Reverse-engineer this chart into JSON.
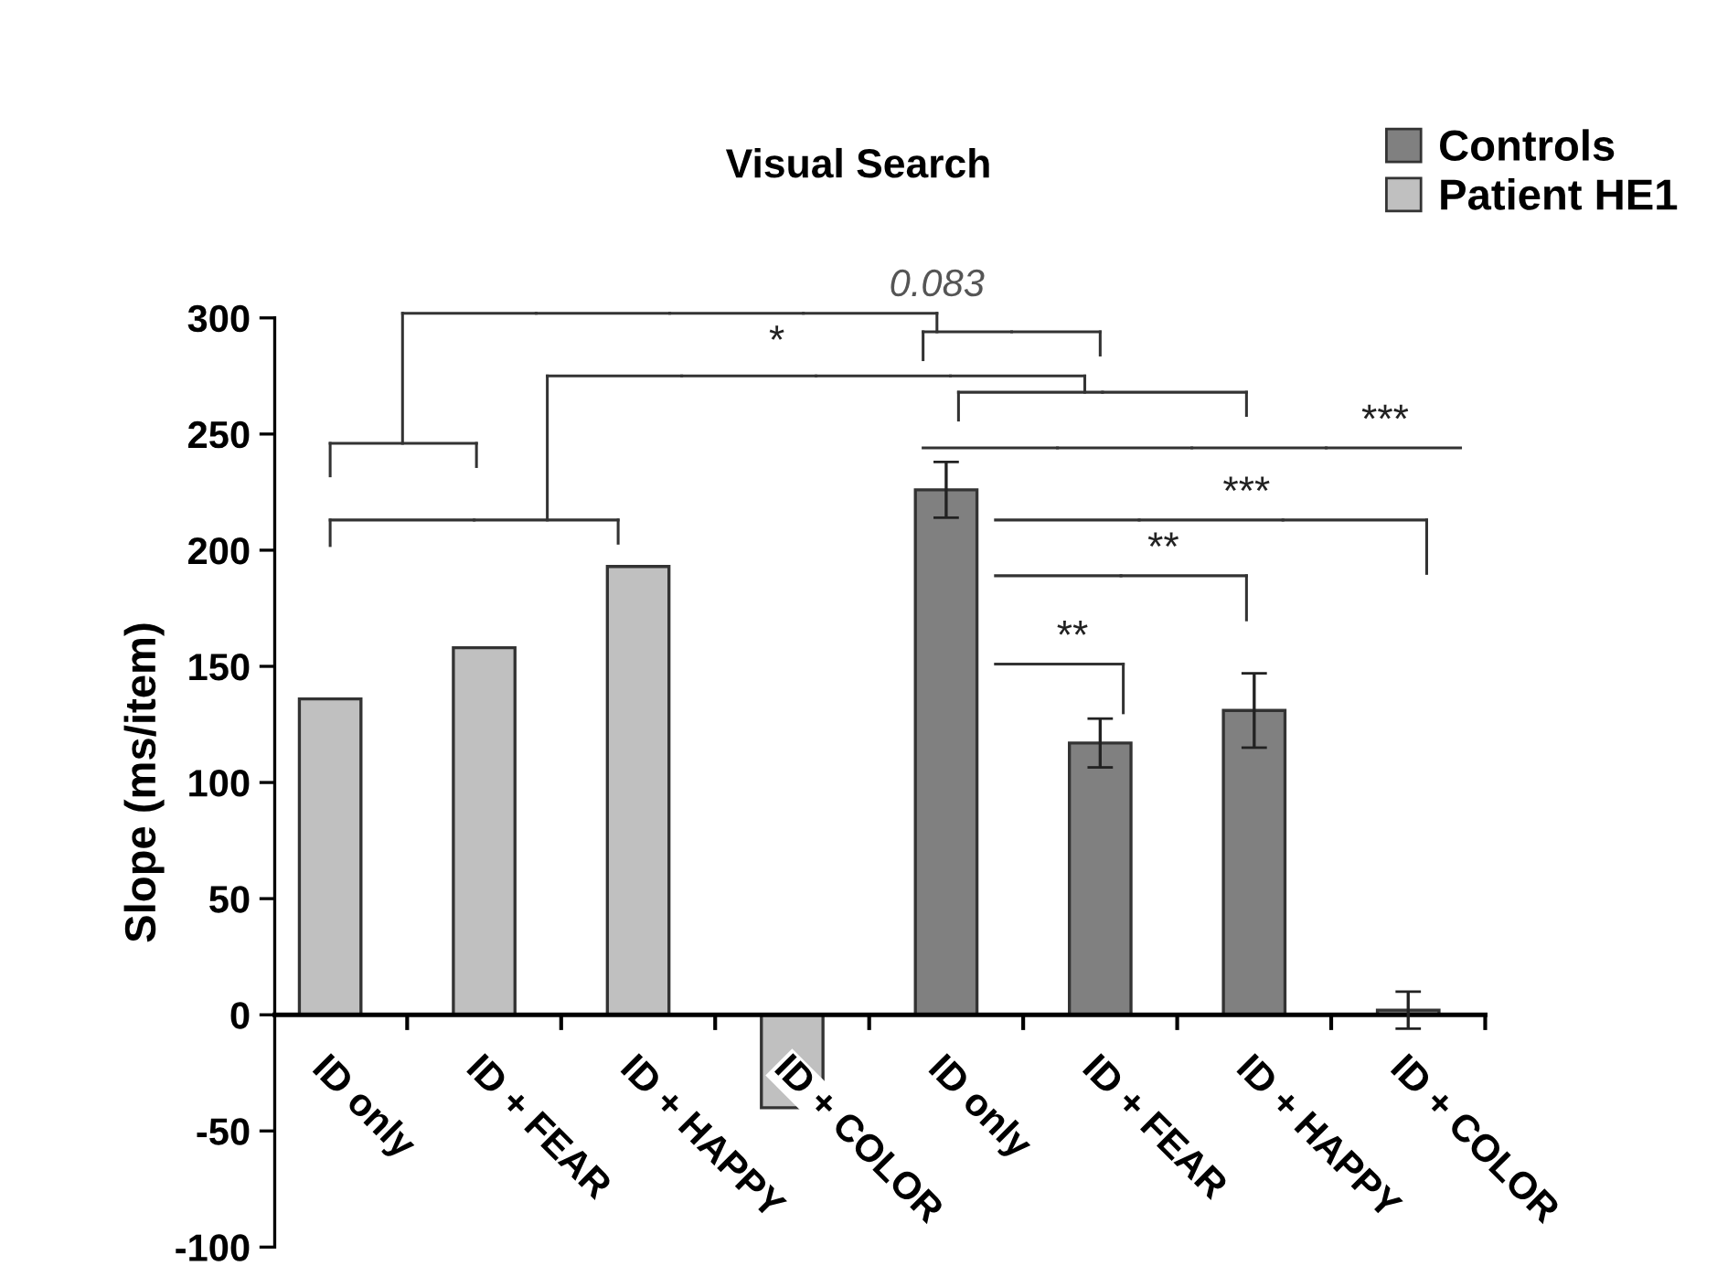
{
  "chart_data": {
    "type": "bar",
    "title": "Visual Search",
    "ylabel": "Slope (ms/item)",
    "categories": [
      "ID only",
      "ID + FEAR",
      "ID + HAPPY",
      "ID + COLOR",
      "ID only",
      "ID + FEAR",
      "ID + HAPPY",
      "ID + COLOR"
    ],
    "series": [
      {
        "name": "Controls",
        "color": "#808080",
        "values": [
          null,
          null,
          null,
          null,
          226,
          117,
          131,
          2
        ],
        "errors": [
          null,
          null,
          null,
          null,
          12,
          10.5,
          16,
          8
        ]
      },
      {
        "name": "Patient HE1",
        "color": "#c0c0c0",
        "values": [
          136,
          158,
          193,
          -40,
          null,
          null,
          null,
          null
        ]
      }
    ],
    "ylim": [
      -100,
      300
    ],
    "yticks": [
      -100,
      -50,
      0,
      50,
      100,
      150,
      200,
      250,
      300
    ],
    "legend": "top right",
    "annotations": [
      "0.083",
      "*",
      "***",
      "***",
      "**",
      "**"
    ]
  }
}
